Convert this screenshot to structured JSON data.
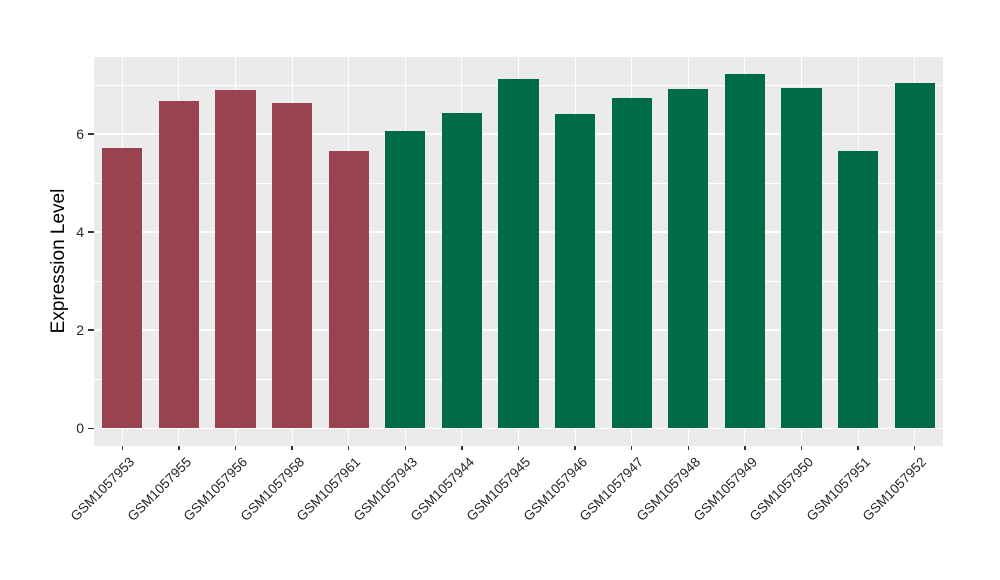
{
  "chart_data": {
    "type": "bar",
    "title": "",
    "xlabel": "",
    "ylabel": "Expression Level",
    "categories": [
      "GSM1057953",
      "GSM1057955",
      "GSM1057956",
      "GSM1057958",
      "GSM1057961",
      "GSM1057943",
      "GSM1057944",
      "GSM1057945",
      "GSM1057946",
      "GSM1057947",
      "GSM1057948",
      "GSM1057949",
      "GSM1057950",
      "GSM1057951",
      "GSM1057952"
    ],
    "values": [
      5.71,
      6.67,
      6.9,
      6.63,
      5.65,
      6.06,
      6.43,
      7.12,
      6.41,
      6.73,
      6.92,
      7.22,
      6.94,
      5.65,
      7.04
    ],
    "bar_group": [
      "A",
      "A",
      "A",
      "A",
      "A",
      "B",
      "B",
      "B",
      "B",
      "B",
      "B",
      "B",
      "B",
      "B",
      "B"
    ],
    "group_colors": {
      "A": "#9A4250",
      "B": "#006B47"
    },
    "ylim": [
      -0.36,
      7.57
    ],
    "yticks_major": [
      0,
      2,
      4,
      6
    ],
    "yticks_minor": [
      1,
      3,
      5,
      7
    ],
    "legend_position": "none",
    "grid": true,
    "panel_bg": "#EBEBEB",
    "grid_color": "#FFFFFF",
    "tick_mark_color": "#333333",
    "tick_label_color": "#262626"
  }
}
